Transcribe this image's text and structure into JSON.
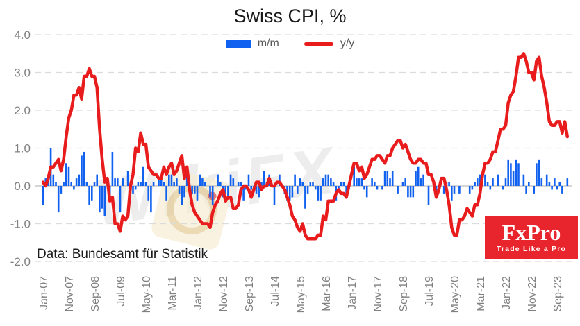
{
  "title": "Swiss CPI, %",
  "legend": {
    "mm_label": "m/m",
    "yy_label": "y/y"
  },
  "source_note": "Data: Bundesamt für Statistik",
  "watermark": "WikiFX",
  "logo": {
    "name": "FxPro",
    "tagline": "Trade Like a Pro"
  },
  "colors": {
    "mm_bar": "#1161f1",
    "yy_line": "#e81c1c",
    "logo_bg": "#e8252c",
    "axis_text": "#808080",
    "grid": "#dcdcdc",
    "zero_line": "#c8c8c8",
    "legend_text": "#595959"
  },
  "chart_data": {
    "type": "bar+line",
    "title": "Swiss CPI, %",
    "x_start": "Jan-07",
    "x_end": "Jan-24",
    "x_tick_every": 10,
    "x_tick_labels": [
      "Jan-07",
      "Nov-07",
      "Sep-08",
      "Jul-09",
      "May-10",
      "Mar-11",
      "Jan-12",
      "Nov-12",
      "Sep-13",
      "Jul-14",
      "May-15",
      "Mar-16",
      "Jan-17",
      "Nov-17",
      "Sep-18",
      "Jul-19",
      "May-20",
      "Mar-21",
      "Jan-22",
      "Nov-22",
      "Sep-23"
    ],
    "ylim": [
      -2.0,
      4.0
    ],
    "y_ticks": [
      4.0,
      3.0,
      2.0,
      1.0,
      0.0,
      -1.0,
      -2.0
    ],
    "grid": true,
    "legend_position": "top-center",
    "series": [
      {
        "name": "m/m",
        "type": "bar",
        "values": [
          -0.5,
          0.2,
          0.2,
          1.0,
          0.3,
          0.1,
          -0.7,
          -0.2,
          0.1,
          0.6,
          0.5,
          0.1,
          -0.1,
          0.2,
          0.3,
          0.8,
          0.9,
          0.1,
          -0.5,
          -0.4,
          0.1,
          0.3,
          -0.7,
          -0.6,
          -0.8,
          0.2,
          -0.3,
          0.9,
          0.2,
          0.2,
          -0.7,
          0.2,
          0.0,
          0.4,
          0.1,
          -0.2,
          -0.1,
          0.1,
          0.1,
          0.5,
          0.1,
          -0.4,
          -0.7,
          0.1,
          0.0,
          0.2,
          0.2,
          0.1,
          -0.4,
          0.3,
          0.3,
          0.1,
          0.2,
          -0.2,
          -0.5,
          -0.3,
          0.3,
          -0.1,
          -0.2,
          -0.2,
          -0.4,
          0.3,
          0.2,
          0.1,
          0.0,
          -0.3,
          -0.5,
          0.0,
          0.3,
          0.1,
          -0.3,
          -0.2,
          -0.3,
          0.3,
          0.2,
          0.0,
          0.1,
          0.1,
          -0.4,
          -0.1,
          0.3,
          -0.1,
          -0.1,
          -0.2,
          -0.3,
          0.1,
          0.4,
          0.1,
          0.3,
          0.0,
          -0.5,
          0.0,
          0.3,
          0.0,
          -0.2,
          -0.4,
          -0.4,
          -0.3,
          0.3,
          -0.2,
          0.2,
          0.1,
          -0.6,
          -0.2,
          0.1,
          0.1,
          -0.1,
          -0.4,
          -0.4,
          0.2,
          0.3,
          0.3,
          0.2,
          0.1,
          -0.4,
          -0.1,
          0.1,
          0.1,
          -0.2,
          -0.1,
          0.0,
          0.5,
          0.2,
          0.2,
          0.2,
          -0.1,
          -0.3,
          0.0,
          0.2,
          0.1,
          -0.1,
          0.0,
          -0.1,
          0.4,
          0.4,
          0.2,
          0.4,
          0.0,
          -0.2,
          0.0,
          0.1,
          0.2,
          -0.3,
          -0.3,
          -0.3,
          0.4,
          0.5,
          0.2,
          0.3,
          0.0,
          -0.5,
          0.0,
          -0.1,
          -0.2,
          0.0,
          0.0,
          -0.2,
          0.1,
          0.1,
          -0.4,
          -0.2,
          0.0,
          -0.2,
          0.0,
          0.0,
          0.0,
          -0.2,
          -0.1,
          0.1,
          0.2,
          0.3,
          0.2,
          0.3,
          0.1,
          -0.1,
          0.2,
          0.0,
          0.3,
          0.0,
          -0.1,
          0.2,
          0.7,
          0.6,
          0.4,
          0.7,
          0.6,
          0.0,
          0.3,
          -0.2,
          0.1,
          0.0,
          -0.2,
          0.6,
          0.7,
          0.2,
          0.0,
          0.3,
          0.1,
          -0.1,
          0.2,
          -0.1,
          0.1,
          -0.2,
          0.0,
          0.2
        ]
      },
      {
        "name": "y/y",
        "type": "line",
        "values": [
          0.1,
          0.0,
          0.2,
          0.5,
          0.5,
          0.6,
          0.7,
          0.4,
          0.7,
          1.3,
          1.8,
          2.0,
          2.4,
          2.4,
          2.6,
          2.3,
          2.9,
          2.9,
          3.1,
          2.9,
          2.9,
          2.6,
          1.5,
          0.7,
          0.1,
          0.2,
          -0.4,
          -0.3,
          -1.0,
          -1.0,
          -1.2,
          -0.8,
          -0.9,
          -0.8,
          0.0,
          0.3,
          1.0,
          0.9,
          1.4,
          1.1,
          1.1,
          0.5,
          0.4,
          0.3,
          0.3,
          0.2,
          0.2,
          0.5,
          0.3,
          0.5,
          0.6,
          0.3,
          0.4,
          0.6,
          0.8,
          0.2,
          0.5,
          -0.1,
          -0.5,
          -0.7,
          -0.8,
          -0.9,
          -1.0,
          -1.0,
          -1.0,
          -1.1,
          -0.7,
          -0.5,
          -0.4,
          -0.2,
          -0.1,
          -0.4,
          -0.3,
          -0.3,
          -0.6,
          -0.6,
          -0.5,
          -0.1,
          0.0,
          0.0,
          -0.1,
          -0.3,
          -0.1,
          0.1,
          0.1,
          -0.1,
          0.0,
          0.0,
          0.2,
          0.0,
          0.0,
          0.1,
          0.1,
          0.0,
          -0.1,
          -0.3,
          -0.5,
          -0.8,
          -0.9,
          -1.1,
          -1.2,
          -1.0,
          -1.3,
          -1.4,
          -1.4,
          -1.4,
          -1.4,
          -1.3,
          -1.3,
          -0.8,
          -0.9,
          -0.4,
          -0.4,
          -0.4,
          -0.2,
          -0.1,
          -0.2,
          -0.2,
          -0.3,
          0.0,
          0.3,
          0.6,
          0.6,
          0.4,
          0.5,
          0.2,
          0.3,
          0.5,
          0.7,
          0.7,
          0.8,
          0.8,
          0.7,
          0.6,
          0.8,
          0.8,
          1.0,
          1.1,
          1.2,
          1.2,
          1.0,
          1.1,
          0.9,
          0.7,
          0.6,
          0.6,
          0.7,
          0.7,
          0.6,
          0.6,
          0.3,
          0.3,
          0.1,
          -0.3,
          -0.1,
          0.2,
          0.2,
          -0.1,
          -0.5,
          -1.1,
          -1.3,
          -1.3,
          -0.9,
          -0.9,
          -0.8,
          -0.6,
          -0.7,
          -0.8,
          -0.5,
          -0.5,
          -0.2,
          0.3,
          0.6,
          0.6,
          0.7,
          0.9,
          0.9,
          1.2,
          1.5,
          1.5,
          1.6,
          2.2,
          2.4,
          2.5,
          2.9,
          3.4,
          3.4,
          3.5,
          3.3,
          3.0,
          3.0,
          2.8,
          3.3,
          3.4,
          2.9,
          2.6,
          2.2,
          1.7,
          1.6,
          1.6,
          1.7,
          1.7,
          1.4,
          1.7,
          1.3
        ]
      }
    ]
  }
}
